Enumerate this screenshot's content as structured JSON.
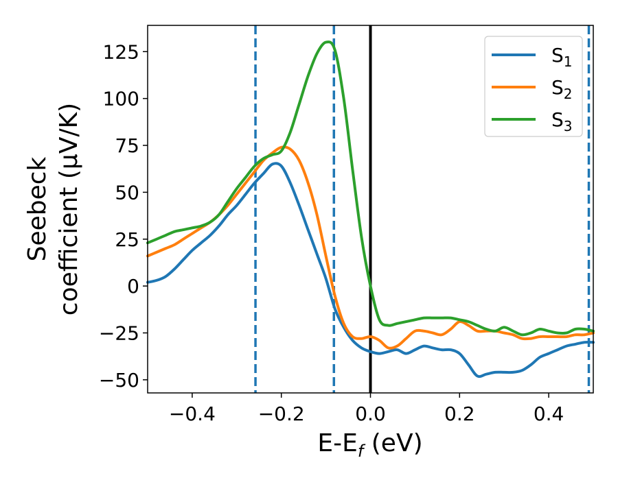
{
  "chart_data": {
    "type": "line",
    "xlabel": {
      "main": "E-E",
      "sub": "f",
      "unit": " (eV)"
    },
    "ylabel": {
      "line1": "Seebeck",
      "line2": "coefficient  (μV/K)"
    },
    "xlim": [
      -0.5,
      0.5
    ],
    "ylim": [
      -57,
      139
    ],
    "x_ticks": [
      -0.4,
      -0.2,
      0.0,
      0.2,
      0.4
    ],
    "x_tick_labels": [
      "−0.4",
      "−0.2",
      "0.0",
      "0.2",
      "0.4"
    ],
    "y_ticks": [
      -50,
      -25,
      0,
      25,
      50,
      75,
      100,
      125
    ],
    "y_tick_labels": [
      "−50",
      "−25",
      "0",
      "25",
      "50",
      "75",
      "100",
      "125"
    ],
    "legend_position": "top-right",
    "grid": false,
    "vertical_lines": [
      {
        "x": -0.258,
        "style": "dashed",
        "color": "#1f77b4"
      },
      {
        "x": -0.082,
        "style": "dashed",
        "color": "#1f77b4"
      },
      {
        "x": 0.0,
        "style": "solid",
        "color": "#000000"
      },
      {
        "x": 0.49,
        "style": "dashed",
        "color": "#1f77b4"
      }
    ],
    "series": [
      {
        "name": "S",
        "sub": "1",
        "color": "#1f77b4",
        "x": [
          -0.5,
          -0.48,
          -0.46,
          -0.44,
          -0.42,
          -0.4,
          -0.38,
          -0.36,
          -0.34,
          -0.32,
          -0.3,
          -0.28,
          -0.26,
          -0.24,
          -0.22,
          -0.2,
          -0.18,
          -0.16,
          -0.14,
          -0.12,
          -0.1,
          -0.08,
          -0.06,
          -0.04,
          -0.02,
          0.0,
          0.02,
          0.04,
          0.06,
          0.08,
          0.1,
          0.12,
          0.14,
          0.16,
          0.18,
          0.2,
          0.22,
          0.24,
          0.26,
          0.28,
          0.3,
          0.32,
          0.34,
          0.36,
          0.38,
          0.4,
          0.42,
          0.44,
          0.46,
          0.48,
          0.5
        ],
        "y": [
          2,
          3,
          5,
          9,
          14,
          19,
          23,
          27,
          32,
          38,
          43,
          49,
          55,
          60,
          65,
          64,
          55,
          43,
          30,
          17,
          4,
          -12,
          -22,
          -29,
          -33,
          -35,
          -36,
          -35,
          -34,
          -36,
          -34,
          -32,
          -33,
          -34,
          -34,
          -36,
          -42,
          -48,
          -47,
          -46,
          -46,
          -46,
          -45,
          -42,
          -38,
          -36,
          -34,
          -32,
          -31,
          -30,
          -30
        ]
      },
      {
        "name": "S",
        "sub": "2",
        "color": "#ff7f0e",
        "x": [
          -0.5,
          -0.48,
          -0.46,
          -0.44,
          -0.42,
          -0.4,
          -0.38,
          -0.36,
          -0.34,
          -0.32,
          -0.3,
          -0.28,
          -0.26,
          -0.24,
          -0.22,
          -0.2,
          -0.18,
          -0.16,
          -0.14,
          -0.12,
          -0.1,
          -0.08,
          -0.06,
          -0.04,
          -0.02,
          0.0,
          0.02,
          0.04,
          0.06,
          0.08,
          0.1,
          0.12,
          0.14,
          0.16,
          0.18,
          0.2,
          0.22,
          0.24,
          0.26,
          0.28,
          0.3,
          0.32,
          0.34,
          0.36,
          0.38,
          0.4,
          0.42,
          0.44,
          0.46,
          0.48,
          0.5
        ],
        "y": [
          16,
          18,
          20,
          22,
          25,
          28,
          31,
          34,
          38,
          43,
          49,
          55,
          61,
          67,
          71,
          74,
          73,
          67,
          55,
          38,
          16,
          -5,
          -20,
          -27,
          -28,
          -27,
          -29,
          -33,
          -32,
          -28,
          -24,
          -24,
          -25,
          -26,
          -23,
          -19,
          -21,
          -24,
          -24,
          -24,
          -25,
          -26,
          -28,
          -28,
          -27,
          -27,
          -27,
          -27,
          -26,
          -26,
          -25
        ]
      },
      {
        "name": "S",
        "sub": "3",
        "color": "#2ca02c",
        "x": [
          -0.5,
          -0.48,
          -0.46,
          -0.44,
          -0.42,
          -0.4,
          -0.38,
          -0.36,
          -0.34,
          -0.32,
          -0.3,
          -0.28,
          -0.26,
          -0.24,
          -0.22,
          -0.2,
          -0.18,
          -0.16,
          -0.14,
          -0.12,
          -0.1,
          -0.08,
          -0.06,
          -0.04,
          -0.02,
          0.0,
          0.02,
          0.04,
          0.06,
          0.08,
          0.1,
          0.12,
          0.14,
          0.16,
          0.18,
          0.2,
          0.22,
          0.24,
          0.26,
          0.28,
          0.3,
          0.32,
          0.34,
          0.36,
          0.38,
          0.4,
          0.42,
          0.44,
          0.46,
          0.48,
          0.5
        ],
        "y": [
          23,
          25,
          27,
          29,
          30,
          31,
          32,
          34,
          38,
          45,
          52,
          58,
          64,
          68,
          70,
          72,
          82,
          97,
          112,
          124,
          130,
          126,
          100,
          62,
          26,
          0,
          -18,
          -21,
          -20,
          -19,
          -18,
          -17,
          -17,
          -17,
          -17,
          -18,
          -19,
          -21,
          -23,
          -24,
          -22,
          -24,
          -26,
          -25,
          -23,
          -24,
          -25,
          -25,
          -23,
          -23,
          -24
        ]
      }
    ]
  }
}
